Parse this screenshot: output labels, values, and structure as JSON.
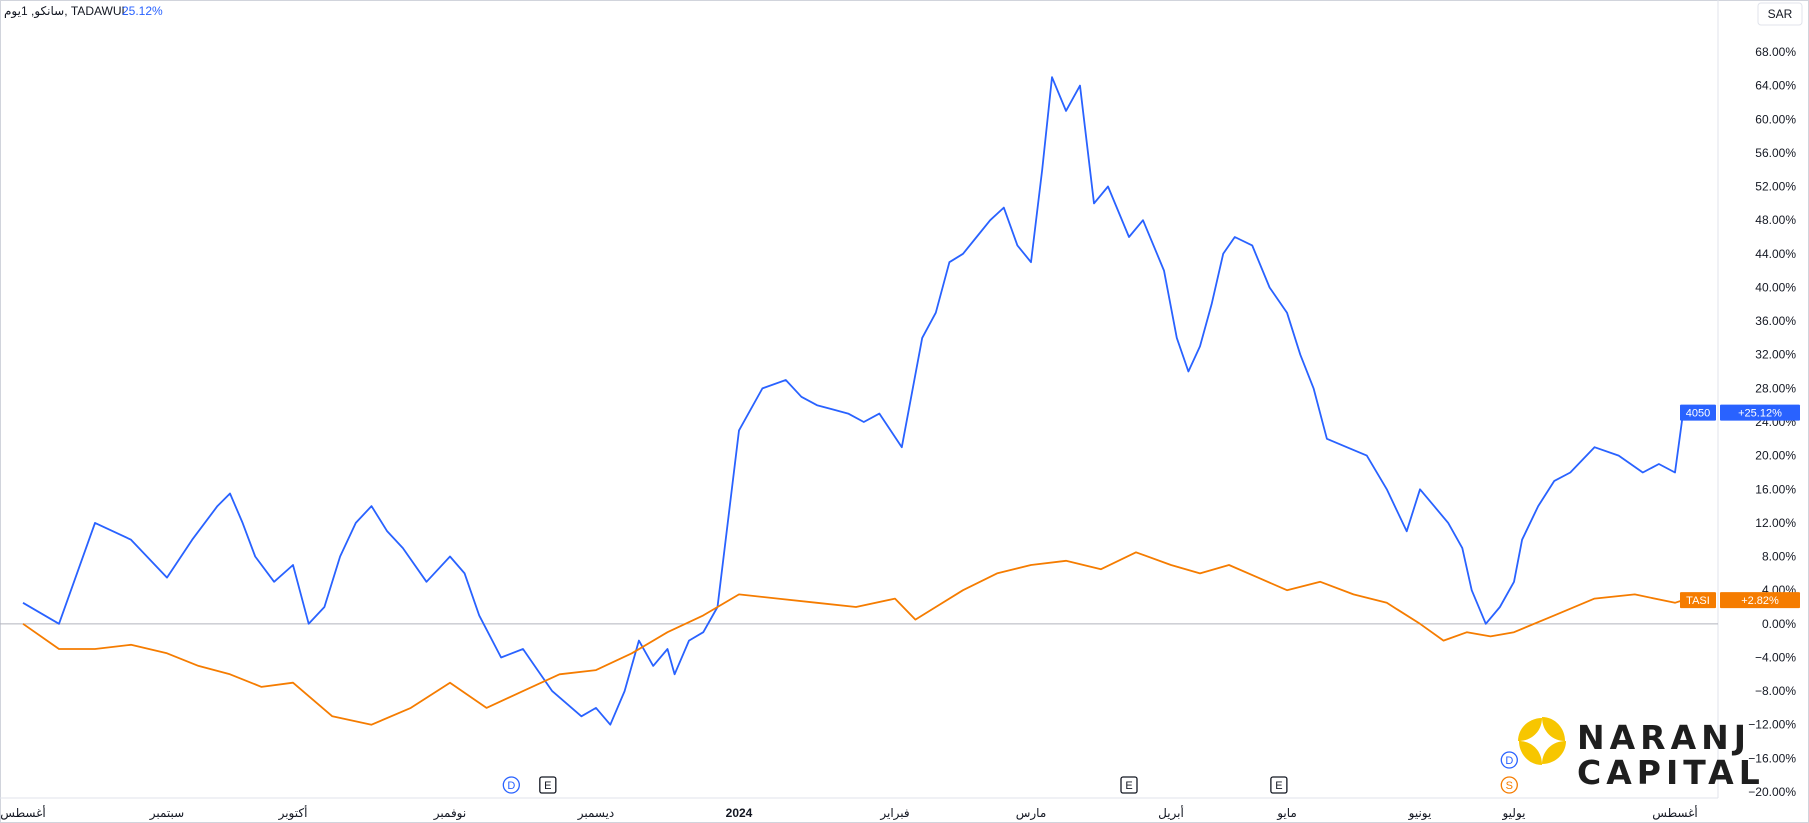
{
  "header": {
    "symbol_text": "سانكو, 1يوم, TADAWUL",
    "change_text": "25.12%"
  },
  "currency_button": "SAR",
  "logo": {
    "line1": "NARANJ",
    "line2": "CAPITAL"
  },
  "markers": [
    {
      "letter": "D",
      "shape": "circle",
      "color": "#2962ff",
      "month_pos": 3.42
    },
    {
      "letter": "E",
      "shape": "square",
      "color": "#131722",
      "month_pos": 3.67
    },
    {
      "letter": "E",
      "shape": "square",
      "color": "#131722",
      "month_pos": 7.7
    },
    {
      "letter": "E",
      "shape": "square",
      "color": "#131722",
      "month_pos": 8.93
    },
    {
      "letter": "D",
      "shape": "circle",
      "color": "#2962ff",
      "month_pos": 10.95,
      "row": 0
    },
    {
      "letter": "S",
      "shape": "circle",
      "color": "#f57c00",
      "month_pos": 10.95,
      "row": 1
    }
  ],
  "chart_data": {
    "type": "line",
    "y_unit": "%",
    "ylim": [
      -20,
      70
    ],
    "y_ticks": [
      "68.00%",
      "64.00%",
      "60.00%",
      "56.00%",
      "52.00%",
      "48.00%",
      "44.00%",
      "40.00%",
      "36.00%",
      "32.00%",
      "28.00%",
      "24.00%",
      "20.00%",
      "16.00%",
      "12.00%",
      "8.00%",
      "4.00%",
      "0.00%",
      "−4.00%",
      "−8.00%",
      "−12.00%",
      "−16.00%",
      "−20.00%"
    ],
    "y_tick_values": [
      68,
      64,
      60,
      56,
      52,
      48,
      44,
      40,
      36,
      32,
      28,
      24,
      20,
      16,
      12,
      8,
      4,
      0,
      -4,
      -8,
      -12,
      -16,
      -20
    ],
    "x_labels": [
      "أغسطس",
      "سبتمبر",
      "أكتوبر",
      "نوفمبر",
      "ديسمبر",
      "2024",
      "فبراير",
      "مارس",
      "أبريل",
      "مايو",
      "يونيو",
      "يوليو",
      "أغسطس"
    ],
    "series": [
      {
        "name": "4050",
        "color": "#2962ff",
        "last_label": "+25.12%",
        "x": [
          0,
          0.25,
          0.5,
          0.75,
          1,
          1.2,
          1.4,
          1.5,
          1.6,
          1.7,
          1.85,
          2,
          2.1,
          2.2,
          2.3,
          2.4,
          2.5,
          2.6,
          2.7,
          2.85,
          3,
          3.1,
          3.2,
          3.35,
          3.5,
          3.6,
          3.7,
          3.8,
          3.9,
          4,
          4.1,
          4.2,
          4.3,
          4.4,
          4.5,
          4.55,
          4.65,
          4.75,
          4.85,
          5,
          5.15,
          5.3,
          5.4,
          5.5,
          5.6,
          5.7,
          5.8,
          5.9,
          6.05,
          6.2,
          6.3,
          6.4,
          6.5,
          6.6,
          6.7,
          6.8,
          6.9,
          7,
          7.08,
          7.15,
          7.25,
          7.35,
          7.45,
          7.55,
          7.7,
          7.8,
          7.95,
          8.05,
          8.15,
          8.25,
          8.35,
          8.45,
          8.55,
          8.7,
          8.85,
          9,
          9.1,
          9.2,
          9.3,
          9.45,
          9.6,
          9.75,
          9.9,
          10,
          10.15,
          10.3,
          10.45,
          10.55,
          10.7,
          10.85,
          11,
          11.05,
          11.15,
          11.25,
          11.35,
          11.5,
          11.65,
          11.8,
          11.9,
          12,
          12.05
        ],
        "y": [
          2.5,
          0,
          12,
          10,
          5.5,
          10,
          14,
          15.5,
          12,
          8,
          5,
          7,
          0,
          2,
          8,
          12,
          14,
          11,
          9,
          5,
          8,
          6,
          1,
          -4,
          -3,
          -5.5,
          -8,
          -9.5,
          -11,
          -10,
          -12,
          -8,
          -2,
          -5,
          -3,
          -6,
          -2,
          -1,
          2,
          23,
          28,
          29,
          27,
          26,
          25.5,
          25,
          24,
          25,
          21,
          34,
          37,
          43,
          44,
          46,
          48,
          49.5,
          45,
          43,
          54,
          65,
          61,
          64,
          50,
          52,
          46,
          48,
          42,
          34,
          30,
          33,
          38,
          44,
          46,
          45,
          40,
          37,
          32,
          28,
          22,
          21,
          20,
          16,
          11,
          16,
          14,
          12,
          9,
          4,
          0,
          2,
          5,
          10,
          14,
          17,
          18,
          21,
          20,
          18,
          19,
          18,
          25.12
        ]
      },
      {
        "name": "TASI",
        "color": "#f57c00",
        "last_label": "+2.82%",
        "x": [
          0,
          0.25,
          0.5,
          0.75,
          1,
          1.25,
          1.5,
          1.75,
          2,
          2.25,
          2.5,
          2.75,
          3,
          3.25,
          3.5,
          3.75,
          4,
          4.25,
          4.5,
          4.75,
          5,
          5.25,
          5.5,
          5.75,
          6,
          6.15,
          6.3,
          6.5,
          6.75,
          7,
          7.25,
          7.5,
          7.75,
          8,
          8.25,
          8.5,
          8.75,
          9,
          9.25,
          9.5,
          9.75,
          10,
          10.25,
          10.5,
          10.75,
          11,
          11.25,
          11.5,
          11.75,
          12,
          12.05
        ],
        "y": [
          0,
          -3,
          -3,
          -2.5,
          -3.5,
          -5,
          -6,
          -7.5,
          -7,
          -11,
          -12,
          -10,
          -7,
          -10,
          -8,
          -6,
          -5.5,
          -3.5,
          -1,
          1,
          3.5,
          3,
          2.5,
          2,
          3,
          0.5,
          2,
          4,
          6,
          7,
          7.5,
          6.5,
          8.5,
          7,
          6,
          7,
          5.5,
          4,
          5,
          3.5,
          2.5,
          0,
          -2,
          -1,
          -1.5,
          -1,
          1,
          3,
          3.5,
          2.5,
          2.82
        ]
      }
    ]
  }
}
